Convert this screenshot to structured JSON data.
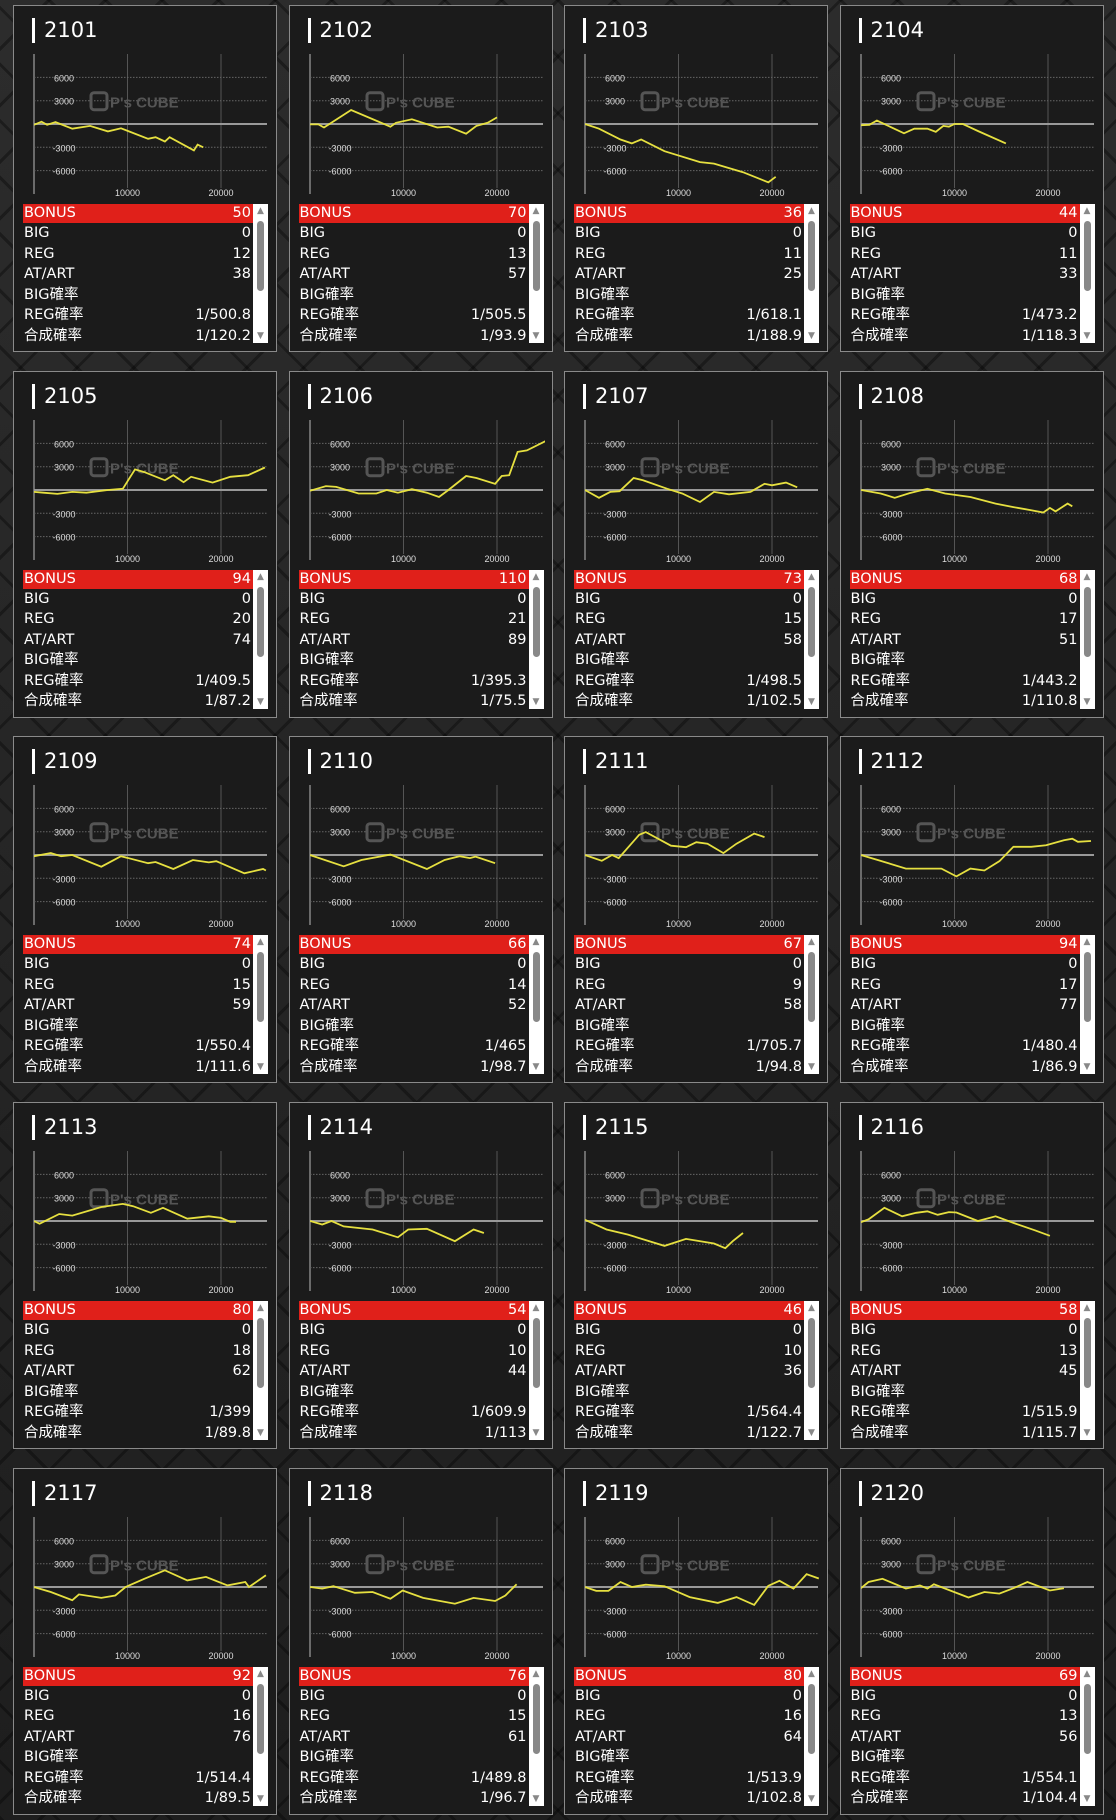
{
  "labels": {
    "bonus": "BONUS",
    "big": "BIG",
    "reg": "REG",
    "at": "AT/ART",
    "big_rate": "BIG確率",
    "reg_rate": "REG確率",
    "total_rate": "合成確率"
  },
  "watermark": "P's CUBE",
  "chart_axes": {
    "y_ticks": [
      "6000",
      "3000",
      "-3000",
      "-6000"
    ],
    "x_ticks": [
      "10000",
      "20000"
    ],
    "xlim": [
      0,
      25000
    ],
    "ylim": [
      -8000,
      10000
    ]
  },
  "colors": {
    "line": "#e6e040",
    "bonus_bg": "#e0201a",
    "card_bg": "#1b1b1b"
  },
  "machines": [
    {
      "id": "2101",
      "bonus": "50",
      "big": "0",
      "reg": "12",
      "at": "38",
      "big_rate": "",
      "reg_rate": "1/500.8",
      "total_rate": "1/120.2",
      "series": [
        [
          0,
          -100
        ],
        [
          0.8,
          300
        ],
        [
          1.4,
          -100
        ],
        [
          2.3,
          250
        ],
        [
          4.1,
          -600
        ],
        [
          6,
          -250
        ],
        [
          7.9,
          -950
        ],
        [
          9.3,
          -550
        ],
        [
          12.2,
          -1900
        ],
        [
          13,
          -1700
        ],
        [
          14,
          -2250
        ],
        [
          14.5,
          -1700
        ],
        [
          17.1,
          -3400
        ],
        [
          17.5,
          -2650
        ],
        [
          18.1,
          -3000
        ]
      ]
    },
    {
      "id": "2102",
      "bonus": "70",
      "big": "0",
      "reg": "13",
      "at": "57",
      "big_rate": "",
      "reg_rate": "1/505.5",
      "total_rate": "1/93.9",
      "series": [
        [
          0,
          -50
        ],
        [
          0.9,
          -50
        ],
        [
          1.5,
          -450
        ],
        [
          4.4,
          1800
        ],
        [
          8.6,
          -350
        ],
        [
          9.2,
          150
        ],
        [
          10.9,
          600
        ],
        [
          13.6,
          -450
        ],
        [
          14.8,
          -350
        ],
        [
          16.7,
          -1250
        ],
        [
          17.8,
          -250
        ],
        [
          19,
          150
        ],
        [
          20,
          850
        ]
      ]
    },
    {
      "id": "2103",
      "bonus": "36",
      "big": "0",
      "reg": "11",
      "at": "25",
      "big_rate": "",
      "reg_rate": "1/618.1",
      "total_rate": "1/188.9",
      "series": [
        [
          0,
          0
        ],
        [
          1.5,
          -600
        ],
        [
          3.8,
          -2000
        ],
        [
          5,
          -2500
        ],
        [
          6,
          -2000
        ],
        [
          8.5,
          -3500
        ],
        [
          12.3,
          -4900
        ],
        [
          13.8,
          -5100
        ],
        [
          16.9,
          -6200
        ],
        [
          19.6,
          -7500
        ],
        [
          20.4,
          -6800
        ]
      ]
    },
    {
      "id": "2104",
      "bonus": "44",
      "big": "0",
      "reg": "11",
      "at": "33",
      "big_rate": "",
      "reg_rate": "1/473.2",
      "total_rate": "1/118.3",
      "series": [
        [
          0,
          -150
        ],
        [
          0.9,
          -100
        ],
        [
          1.7,
          450
        ],
        [
          4.6,
          -1200
        ],
        [
          5.7,
          -600
        ],
        [
          7.1,
          -600
        ],
        [
          8,
          -1000
        ],
        [
          8.8,
          -250
        ],
        [
          9.4,
          -350
        ],
        [
          10,
          0
        ],
        [
          10.9,
          0
        ],
        [
          12.5,
          -900
        ],
        [
          15.5,
          -2500
        ]
      ]
    },
    {
      "id": "2105",
      "bonus": "94",
      "big": "0",
      "reg": "20",
      "at": "74",
      "big_rate": "",
      "reg_rate": "1/409.5",
      "total_rate": "1/87.2",
      "series": [
        [
          0,
          -250
        ],
        [
          1,
          -350
        ],
        [
          2.5,
          -500
        ],
        [
          4.1,
          -250
        ],
        [
          5.6,
          -350
        ],
        [
          7.9,
          0
        ],
        [
          9.5,
          150
        ],
        [
          10.8,
          2650
        ],
        [
          11.8,
          2300
        ],
        [
          14,
          1250
        ],
        [
          14.9,
          1900
        ],
        [
          16,
          1000
        ],
        [
          16.8,
          1700
        ],
        [
          19.1,
          950
        ],
        [
          21,
          1700
        ],
        [
          22.9,
          1900
        ],
        [
          24.7,
          2900
        ]
      ]
    },
    {
      "id": "2106",
      "bonus": "110",
      "big": "0",
      "reg": "21",
      "at": "89",
      "big_rate": "",
      "reg_rate": "1/395.3",
      "total_rate": "1/75.5",
      "series": [
        [
          0,
          -100
        ],
        [
          1.7,
          500
        ],
        [
          2.8,
          400
        ],
        [
          5.2,
          -450
        ],
        [
          7.1,
          -450
        ],
        [
          8.2,
          0
        ],
        [
          9.4,
          -350
        ],
        [
          10.9,
          100
        ],
        [
          12.5,
          -350
        ],
        [
          13.8,
          -900
        ],
        [
          14.8,
          0
        ],
        [
          16.7,
          1800
        ],
        [
          17.8,
          1550
        ],
        [
          19.8,
          800
        ],
        [
          20.5,
          1800
        ],
        [
          21.3,
          1900
        ],
        [
          22.2,
          4900
        ],
        [
          23.2,
          5100
        ],
        [
          25.2,
          6300
        ]
      ]
    },
    {
      "id": "2107",
      "bonus": "73",
      "big": "0",
      "reg": "15",
      "at": "58",
      "big_rate": "",
      "reg_rate": "1/498.5",
      "total_rate": "1/102.5",
      "series": [
        [
          0,
          0
        ],
        [
          1.5,
          -1000
        ],
        [
          2.7,
          -250
        ],
        [
          3.7,
          -150
        ],
        [
          5.2,
          1550
        ],
        [
          6.2,
          1250
        ],
        [
          8.8,
          150
        ],
        [
          10.4,
          -450
        ],
        [
          12.3,
          -1550
        ],
        [
          13.8,
          -250
        ],
        [
          15.4,
          -550
        ],
        [
          17.7,
          -250
        ],
        [
          19.2,
          800
        ],
        [
          20,
          600
        ],
        [
          21.5,
          950
        ],
        [
          22.7,
          350
        ]
      ]
    },
    {
      "id": "2108",
      "bonus": "68",
      "big": "0",
      "reg": "17",
      "at": "51",
      "big_rate": "",
      "reg_rate": "1/443.2",
      "total_rate": "1/110.8",
      "series": [
        [
          0,
          0
        ],
        [
          2.1,
          -450
        ],
        [
          3.6,
          -1000
        ],
        [
          5.2,
          -400
        ],
        [
          7.1,
          150
        ],
        [
          9,
          -450
        ],
        [
          11.7,
          -900
        ],
        [
          14.4,
          -1750
        ],
        [
          16.3,
          -2200
        ],
        [
          18.2,
          -2600
        ],
        [
          19.5,
          -2900
        ],
        [
          20.2,
          -2300
        ],
        [
          20.8,
          -2750
        ],
        [
          22.1,
          -1750
        ],
        [
          22.6,
          -2100
        ]
      ]
    },
    {
      "id": "2109",
      "bonus": "74",
      "big": "0",
      "reg": "15",
      "at": "59",
      "big_rate": "",
      "reg_rate": "1/550.4",
      "total_rate": "1/111.6",
      "series": [
        [
          0,
          -150
        ],
        [
          1.8,
          250
        ],
        [
          2.9,
          -150
        ],
        [
          4.1,
          0
        ],
        [
          7.2,
          -1500
        ],
        [
          9.3,
          -150
        ],
        [
          12.2,
          -1050
        ],
        [
          13,
          -900
        ],
        [
          14.9,
          -1800
        ],
        [
          17,
          -650
        ],
        [
          18.7,
          -950
        ],
        [
          19.5,
          -800
        ],
        [
          22.5,
          -2350
        ],
        [
          24.5,
          -1800
        ],
        [
          24.8,
          -2000
        ]
      ]
    },
    {
      "id": "2110",
      "bonus": "66",
      "big": "0",
      "reg": "14",
      "at": "52",
      "big_rate": "",
      "reg_rate": "1/465",
      "total_rate": "1/98.7",
      "series": [
        [
          0,
          0
        ],
        [
          3.6,
          -1450
        ],
        [
          5.5,
          -650
        ],
        [
          8.6,
          50
        ],
        [
          12.5,
          -1800
        ],
        [
          14.4,
          -650
        ],
        [
          16,
          -150
        ],
        [
          17.1,
          -400
        ],
        [
          17.7,
          -200
        ],
        [
          19.8,
          -1050
        ]
      ]
    },
    {
      "id": "2111",
      "bonus": "67",
      "big": "0",
      "reg": "9",
      "at": "58",
      "big_rate": "",
      "reg_rate": "1/705.7",
      "total_rate": "1/94.8",
      "series": [
        [
          0,
          0
        ],
        [
          1.8,
          -750
        ],
        [
          2.9,
          0
        ],
        [
          3.6,
          -400
        ],
        [
          5.8,
          2600
        ],
        [
          6.5,
          2950
        ],
        [
          9.2,
          1200
        ],
        [
          10.8,
          1000
        ],
        [
          11.9,
          1650
        ],
        [
          13.1,
          1450
        ],
        [
          14.8,
          250
        ],
        [
          16.2,
          1450
        ],
        [
          18.1,
          2750
        ],
        [
          19.2,
          2300
        ]
      ]
    },
    {
      "id": "2112",
      "bonus": "94",
      "big": "0",
      "reg": "17",
      "at": "77",
      "big_rate": "",
      "reg_rate": "1/480.4",
      "total_rate": "1/86.9",
      "series": [
        [
          0,
          0
        ],
        [
          1.7,
          -600
        ],
        [
          4.8,
          -1750
        ],
        [
          7.1,
          -1750
        ],
        [
          8.6,
          -1750
        ],
        [
          10.2,
          -2750
        ],
        [
          11.7,
          -1750
        ],
        [
          13.2,
          -2000
        ],
        [
          14.8,
          -800
        ],
        [
          16.3,
          1050
        ],
        [
          18.2,
          1050
        ],
        [
          19.8,
          1250
        ],
        [
          21.7,
          1900
        ],
        [
          22.6,
          2100
        ],
        [
          23.2,
          1700
        ],
        [
          24.6,
          1800
        ]
      ]
    },
    {
      "id": "2113",
      "bonus": "80",
      "big": "0",
      "reg": "18",
      "at": "62",
      "big_rate": "",
      "reg_rate": "1/399",
      "total_rate": "1/89.8",
      "series": [
        [
          0,
          0
        ],
        [
          0.6,
          -350
        ],
        [
          2.7,
          900
        ],
        [
          4.1,
          700
        ],
        [
          7.2,
          1800
        ],
        [
          9.5,
          2200
        ],
        [
          10.6,
          1900
        ],
        [
          12.5,
          1050
        ],
        [
          13.8,
          1700
        ],
        [
          16.4,
          300
        ],
        [
          18.7,
          600
        ],
        [
          20,
          400
        ],
        [
          21,
          -100
        ],
        [
          21.6,
          -100
        ]
      ]
    },
    {
      "id": "2114",
      "bonus": "54",
      "big": "0",
      "reg": "10",
      "at": "44",
      "big_rate": "",
      "reg_rate": "1/609.9",
      "total_rate": "1/113",
      "series": [
        [
          0,
          0
        ],
        [
          1.3,
          -450
        ],
        [
          2.3,
          0
        ],
        [
          3.6,
          -700
        ],
        [
          6.7,
          -1100
        ],
        [
          9.4,
          -2100
        ],
        [
          10.5,
          -1100
        ],
        [
          12.5,
          -1000
        ],
        [
          15.5,
          -2600
        ],
        [
          17.5,
          -1100
        ],
        [
          18.6,
          -1550
        ]
      ]
    },
    {
      "id": "2115",
      "bonus": "46",
      "big": "0",
      "reg": "10",
      "at": "36",
      "big_rate": "",
      "reg_rate": "1/564.4",
      "total_rate": "1/122.7",
      "series": [
        [
          0,
          150
        ],
        [
          2.3,
          -1100
        ],
        [
          4.6,
          -1750
        ],
        [
          8.5,
          -3200
        ],
        [
          10.8,
          -2300
        ],
        [
          13.8,
          -2900
        ],
        [
          15,
          -3500
        ],
        [
          15.8,
          -2600
        ],
        [
          16.9,
          -1550
        ]
      ]
    },
    {
      "id": "2116",
      "bonus": "58",
      "big": "0",
      "reg": "13",
      "at": "45",
      "big_rate": "",
      "reg_rate": "1/515.9",
      "total_rate": "1/115.7",
      "series": [
        [
          0,
          -150
        ],
        [
          0.8,
          200
        ],
        [
          2.5,
          1700
        ],
        [
          4.4,
          600
        ],
        [
          5.9,
          1050
        ],
        [
          7.1,
          1250
        ],
        [
          8.2,
          800
        ],
        [
          9.4,
          1150
        ],
        [
          10.2,
          1100
        ],
        [
          12.5,
          0
        ],
        [
          14.4,
          600
        ],
        [
          16.3,
          -250
        ],
        [
          18.6,
          -1200
        ],
        [
          20.2,
          -1900
        ]
      ]
    },
    {
      "id": "2117",
      "bonus": "92",
      "big": "0",
      "reg": "16",
      "at": "76",
      "big_rate": "",
      "reg_rate": "1/514.4",
      "total_rate": "1/89.5",
      "series": [
        [
          0,
          0
        ],
        [
          1.8,
          -650
        ],
        [
          4.1,
          -1700
        ],
        [
          4.8,
          -950
        ],
        [
          7.2,
          -1400
        ],
        [
          8.7,
          -1100
        ],
        [
          9.8,
          0
        ],
        [
          11.8,
          1050
        ],
        [
          14,
          2150
        ],
        [
          16.4,
          850
        ],
        [
          18.4,
          1300
        ],
        [
          20.7,
          200
        ],
        [
          22.6,
          650
        ],
        [
          23,
          0
        ],
        [
          24.8,
          1500
        ]
      ]
    },
    {
      "id": "2118",
      "bonus": "76",
      "big": "0",
      "reg": "15",
      "at": "61",
      "big_rate": "",
      "reg_rate": "1/489.8",
      "total_rate": "1/96.7",
      "series": [
        [
          0,
          0
        ],
        [
          1.3,
          -200
        ],
        [
          2.5,
          100
        ],
        [
          4.8,
          -750
        ],
        [
          6.7,
          -650
        ],
        [
          8.6,
          -1500
        ],
        [
          9.9,
          -450
        ],
        [
          12.1,
          -1400
        ],
        [
          15.5,
          -2150
        ],
        [
          17.5,
          -1400
        ],
        [
          19.8,
          -1800
        ],
        [
          20.9,
          -1100
        ],
        [
          22.1,
          350
        ]
      ]
    },
    {
      "id": "2119",
      "bonus": "80",
      "big": "0",
      "reg": "16",
      "at": "64",
      "big_rate": "",
      "reg_rate": "1/513.9",
      "total_rate": "1/102.8",
      "series": [
        [
          0,
          0
        ],
        [
          1.2,
          -500
        ],
        [
          2.5,
          -500
        ],
        [
          3.8,
          650
        ],
        [
          5,
          0
        ],
        [
          6.5,
          300
        ],
        [
          8.5,
          100
        ],
        [
          11.2,
          -1300
        ],
        [
          14.2,
          -2050
        ],
        [
          16.2,
          -1300
        ],
        [
          18.1,
          -2300
        ],
        [
          19.6,
          150
        ],
        [
          20.8,
          800
        ],
        [
          22.3,
          -200
        ],
        [
          23.7,
          1650
        ],
        [
          25,
          1100
        ]
      ]
    },
    {
      "id": "2120",
      "bonus": "69",
      "big": "0",
      "reg": "13",
      "at": "56",
      "big_rate": "",
      "reg_rate": "1/554.1",
      "total_rate": "1/104.4",
      "series": [
        [
          0,
          -150
        ],
        [
          0.8,
          650
        ],
        [
          2.3,
          1050
        ],
        [
          4.8,
          -200
        ],
        [
          6.3,
          200
        ],
        [
          7.1,
          -200
        ],
        [
          7.8,
          350
        ],
        [
          11.5,
          -1350
        ],
        [
          13.2,
          -650
        ],
        [
          14.8,
          -850
        ],
        [
          16.3,
          -150
        ],
        [
          17.8,
          650
        ],
        [
          20.2,
          -450
        ],
        [
          21.7,
          -150
        ]
      ]
    }
  ]
}
